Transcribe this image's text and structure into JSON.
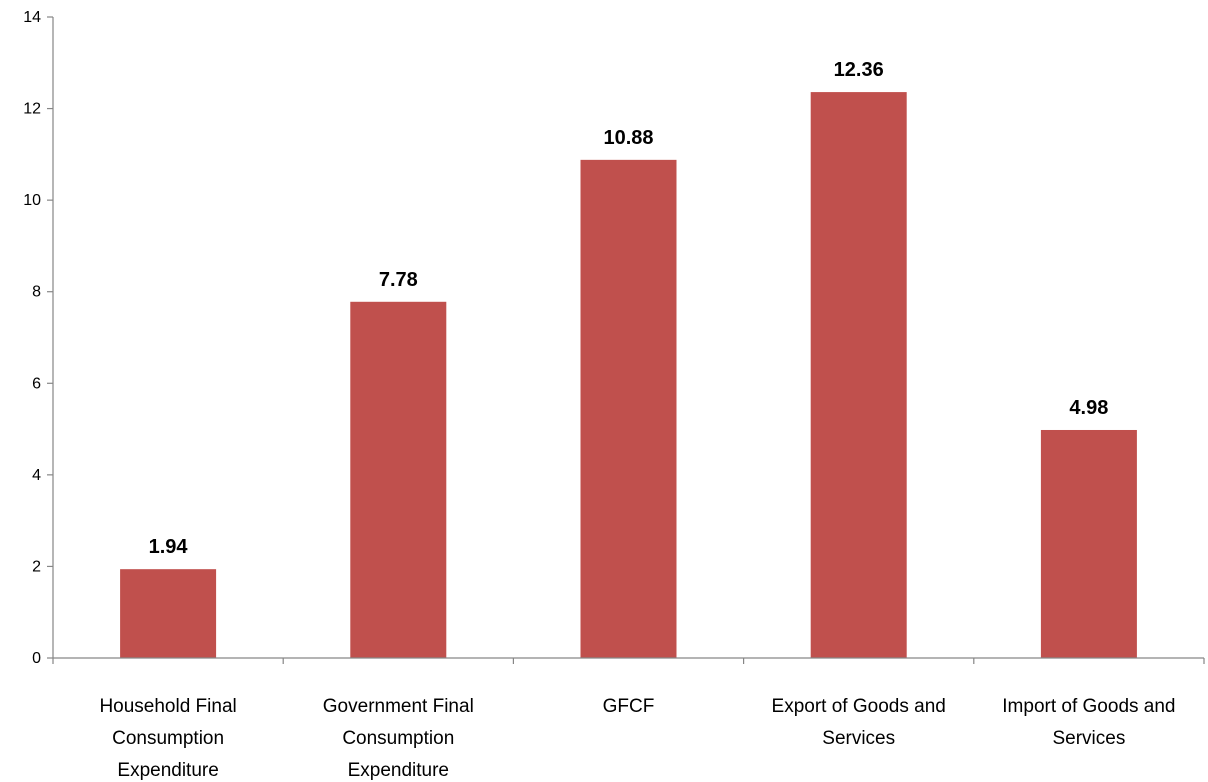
{
  "chart_data": {
    "type": "bar",
    "categories": [
      [
        "Household Final",
        "Consumption",
        "Expenditure"
      ],
      [
        "Government Final",
        "Consumption",
        "Expenditure"
      ],
      [
        "GFCF"
      ],
      [
        "Export of Goods and",
        "Services"
      ],
      [
        "Import of Goods and",
        "Services"
      ]
    ],
    "values": [
      1.94,
      7.78,
      10.88,
      12.36,
      4.98
    ],
    "data_labels": [
      "1.94",
      "7.78",
      "10.88",
      "12.36",
      "4.98"
    ],
    "ylim": [
      0,
      14
    ],
    "yticks": [
      0,
      2,
      4,
      6,
      8,
      10,
      12,
      14
    ],
    "title": "",
    "xlabel": "",
    "ylabel": "",
    "grid": false,
    "legend": "none",
    "colors": {
      "bar": "#c0504d",
      "axis": "#868686",
      "text": "#000000"
    }
  }
}
